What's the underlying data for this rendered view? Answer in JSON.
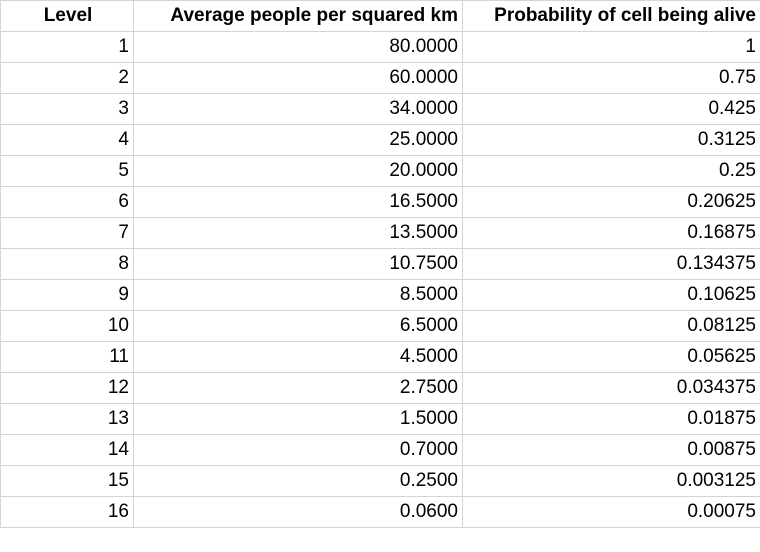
{
  "spreadsheet": {
    "headers": {
      "level": "Level",
      "density": "Average people per squared km",
      "probability": "Probability of cell being alive"
    },
    "rows": [
      {
        "level": "1",
        "density": "80.0000",
        "probability": "1"
      },
      {
        "level": "2",
        "density": "60.0000",
        "probability": "0.75"
      },
      {
        "level": "3",
        "density": "34.0000",
        "probability": "0.425"
      },
      {
        "level": "4",
        "density": "25.0000",
        "probability": "0.3125"
      },
      {
        "level": "5",
        "density": "20.0000",
        "probability": "0.25"
      },
      {
        "level": "6",
        "density": "16.5000",
        "probability": "0.20625"
      },
      {
        "level": "7",
        "density": "13.5000",
        "probability": "0.16875"
      },
      {
        "level": "8",
        "density": "10.7500",
        "probability": "0.134375"
      },
      {
        "level": "9",
        "density": "8.5000",
        "probability": "0.10625"
      },
      {
        "level": "10",
        "density": "6.5000",
        "probability": "0.08125"
      },
      {
        "level": "11",
        "density": "4.5000",
        "probability": "0.05625"
      },
      {
        "level": "12",
        "density": "2.7500",
        "probability": "0.034375"
      },
      {
        "level": "13",
        "density": "1.5000",
        "probability": "0.01875"
      },
      {
        "level": "14",
        "density": "0.7000",
        "probability": "0.00875"
      },
      {
        "level": "15",
        "density": "0.2500",
        "probability": "0.003125"
      },
      {
        "level": "16",
        "density": "0.0600",
        "probability": "0.00075"
      }
    ],
    "gridline_color": "#d4d4d4"
  }
}
